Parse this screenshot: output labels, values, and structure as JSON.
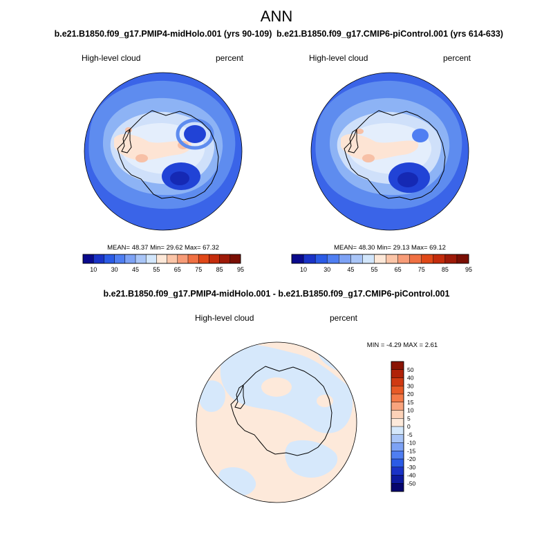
{
  "page": {
    "title": "ANN"
  },
  "panels": [
    {
      "id": "left",
      "case_title": "b.e21.B1850.f09_g17.PMIP4-midHolo.001 (yrs 90-109)",
      "variable": "High-level cloud",
      "units": "percent",
      "stats": {
        "mean": "48.37",
        "min": "29.62",
        "max": "67.32"
      },
      "stats_text": "MEAN=  48.37  Min=  29.62  Max=  67.32"
    },
    {
      "id": "right",
      "case_title": "b.e21.B1850.f09_g17.CMIP6-piControl.001 (yrs 614-633)",
      "variable": "High-level cloud",
      "units": "percent",
      "stats": {
        "mean": "48.30",
        "min": "29.13",
        "max": "69.12"
      },
      "stats_text": "MEAN=  48.30  Min=  29.13  Max=  69.12"
    }
  ],
  "abs_colorbar": {
    "tick_labels": [
      "10",
      "30",
      "45",
      "55",
      "65",
      "75",
      "85",
      "95"
    ],
    "colors": [
      "#0a0a8c",
      "#1a33c7",
      "#2b5be6",
      "#4f7ef2",
      "#7da2f5",
      "#a9c5f7",
      "#d2e6fb",
      "#fde8d8",
      "#fbc5a8",
      "#f79c78",
      "#f07043",
      "#e04818",
      "#c42c0c",
      "#9e1a08",
      "#7a0f04"
    ]
  },
  "diff": {
    "title": "b.e21.B1850.f09_g17.PMIP4-midHolo.001 - b.e21.B1850.f09_g17.CMIP6-piControl.001",
    "variable": "High-level cloud",
    "units": "percent",
    "stats": {
      "min": "-4.29",
      "max": "2.61"
    },
    "stats_text": "MIN =  -4.29 MAX =   2.61",
    "levels": [
      "50",
      "40",
      "30",
      "20",
      "15",
      "10",
      "5",
      "0",
      "-5",
      "-10",
      "-15",
      "-20",
      "-30",
      "-40",
      "-50"
    ],
    "colors": [
      "#8a1404",
      "#b02208",
      "#d03a12",
      "#e85a26",
      "#f47a48",
      "#f9a47e",
      "#fcd2b8",
      "#fdeadb",
      "#d5e8fb",
      "#a9c5f7",
      "#7da2f5",
      "#4f7ef2",
      "#2b5be6",
      "#1a33c7",
      "#0d1a9e",
      "#06066e"
    ]
  },
  "map_colors": {
    "ocean_outer": "#3a64e8",
    "band_mid": "#5e8cef",
    "band_light": "#8db3f5",
    "pale_blue": "#cfe0fa",
    "very_pale": "#e4eefc",
    "peach": "#fde4d4",
    "salmon": "#f7c0a6",
    "deep_blue": "#2143d6",
    "diff_neg": "#d6e8fb",
    "diff_pos": "#fde9da"
  }
}
